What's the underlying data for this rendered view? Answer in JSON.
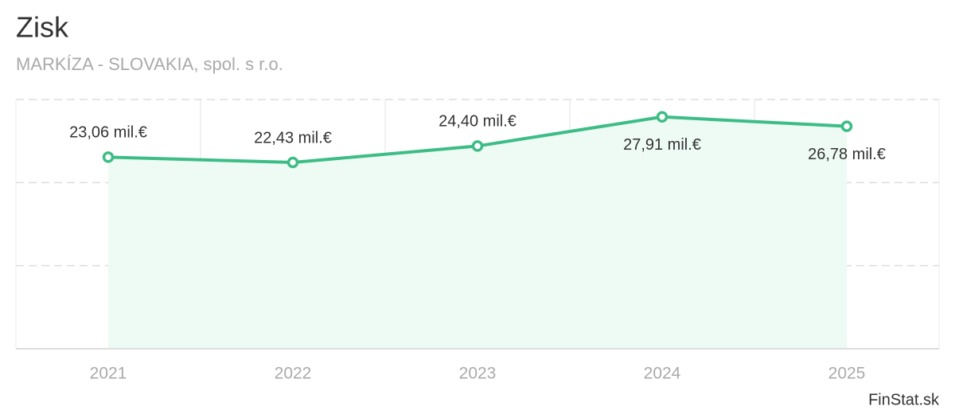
{
  "chart_data": {
    "type": "line",
    "title": "Zisk",
    "subtitle": "MARKÍZA - SLOVAKIA, spol. s r.o.",
    "categories": [
      "2021",
      "2022",
      "2023",
      "2024",
      "2025"
    ],
    "values": [
      23.06,
      22.43,
      24.4,
      27.91,
      26.78
    ],
    "value_labels": [
      "23,06 mil.€",
      "22,43 mil.€",
      "24,40 mil.€",
      "27,91 mil.€",
      "26,78 mil.€"
    ],
    "color": "#3dbd86",
    "ylim": [
      0,
      30
    ],
    "yticks": [
      0,
      10,
      20,
      30
    ],
    "grid": true,
    "source": "FinStat.sk"
  }
}
